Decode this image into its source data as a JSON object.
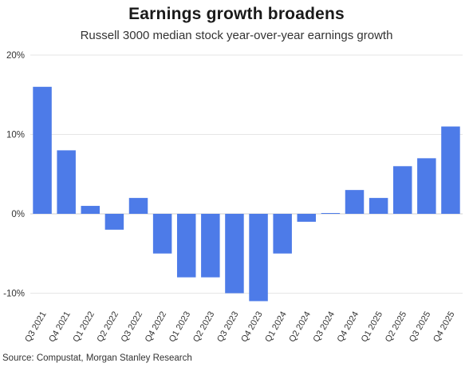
{
  "chart_data": {
    "type": "bar",
    "title": "Earnings growth broadens",
    "subtitle": "Russell 3000 median stock year-over-year earnings growth",
    "categories": [
      "Q3 2021",
      "Q4 2021",
      "Q1 2022",
      "Q2 2022",
      "Q3 2022",
      "Q4 2022",
      "Q1 2023",
      "Q2 2023",
      "Q3 2023",
      "Q4 2023",
      "Q1 2024",
      "Q2 2024",
      "Q3 2024",
      "Q4 2024",
      "Q1 2025",
      "Q2 2025",
      "Q3 2025",
      "Q4 2025"
    ],
    "values": [
      16,
      8,
      1,
      -2,
      2,
      -5,
      -8,
      -8,
      -10,
      -11,
      -5,
      -1,
      0.1,
      3,
      2,
      6,
      7,
      11
    ],
    "y_ticks": [
      "20%",
      "10%",
      "0%",
      "-10%"
    ],
    "y_tick_values": [
      20,
      10,
      0,
      -10
    ],
    "ylim": [
      -12,
      20
    ],
    "grid": true,
    "xlabel": "",
    "ylabel": "",
    "bar_color": "#4d7be8"
  },
  "source": "Source: Compustat, Morgan Stanley Research"
}
